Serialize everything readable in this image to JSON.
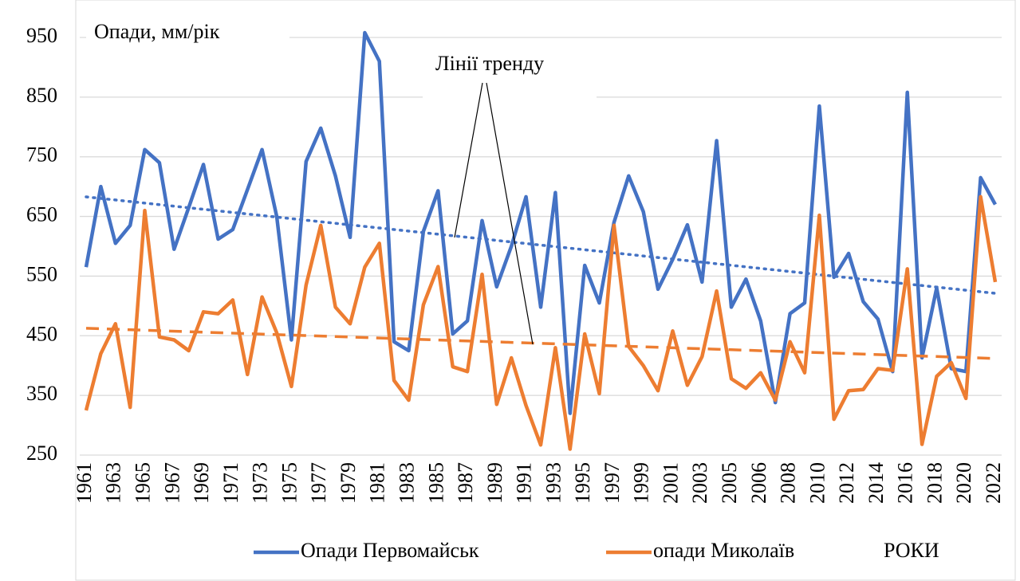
{
  "chart_data": {
    "type": "line",
    "y_axis_label": "Опади, мм/рік",
    "x_axis_label": "РОКИ",
    "annotation": "Лінії тренду",
    "categories": [
      "1961",
      null,
      "1963",
      null,
      "1965",
      null,
      "1967",
      null,
      "1969",
      null,
      "1971",
      null,
      "1973",
      null,
      "1975",
      null,
      "1977",
      null,
      "1979",
      null,
      "1981",
      null,
      "1983",
      null,
      "1985",
      null,
      "1987",
      null,
      "1989",
      null,
      "1991",
      null,
      "1993",
      null,
      "1995",
      null,
      "1997",
      null,
      "1999",
      null,
      "2001",
      null,
      "2003",
      null,
      "2005",
      null,
      "2006",
      null,
      "2008",
      null,
      "2010",
      null,
      "2012",
      null,
      "2014",
      null,
      "2016",
      null,
      "2018",
      null,
      "2020",
      null,
      "2022"
    ],
    "series": [
      {
        "name": "Опади Первомайськ",
        "color": "#4472c4",
        "trendline": "linear",
        "trend_style": "dotted",
        "values": [
          565,
          700,
          605,
          635,
          762,
          740,
          595,
          665,
          737,
          612,
          628,
          695,
          762,
          650,
          443,
          742,
          798,
          718,
          615,
          958,
          910,
          440,
          425,
          625,
          693,
          453,
          475,
          643,
          532,
          600,
          683,
          498,
          690,
          320,
          568,
          505,
          640,
          718,
          658,
          528,
          578,
          636,
          540,
          777,
          498,
          545,
          475,
          338,
          487,
          505,
          835,
          548,
          588,
          507,
          478,
          390,
          858,
          413,
          530,
          395,
          390,
          715,
          670
        ]
      },
      {
        "name": "опади Миколаїв",
        "color": "#ed7d31",
        "trendline": "linear",
        "trend_style": "dashed",
        "values": [
          325,
          420,
          470,
          330,
          660,
          448,
          443,
          425,
          490,
          487,
          510,
          385,
          515,
          455,
          365,
          535,
          635,
          498,
          470,
          565,
          605,
          375,
          342,
          502,
          566,
          398,
          390,
          553,
          335,
          413,
          333,
          267,
          430,
          260,
          453,
          353,
          635,
          432,
          400,
          358,
          458,
          367,
          415,
          525,
          378,
          362,
          388,
          342,
          440,
          388,
          652,
          310,
          358,
          360,
          395,
          392,
          562,
          268,
          382,
          405,
          345,
          683,
          540
        ]
      }
    ],
    "ylim": [
      250,
      950
    ],
    "yticks": [
      250,
      350,
      450,
      550,
      650,
      750,
      850,
      950
    ],
    "grid": true,
    "legend": "bottom"
  }
}
